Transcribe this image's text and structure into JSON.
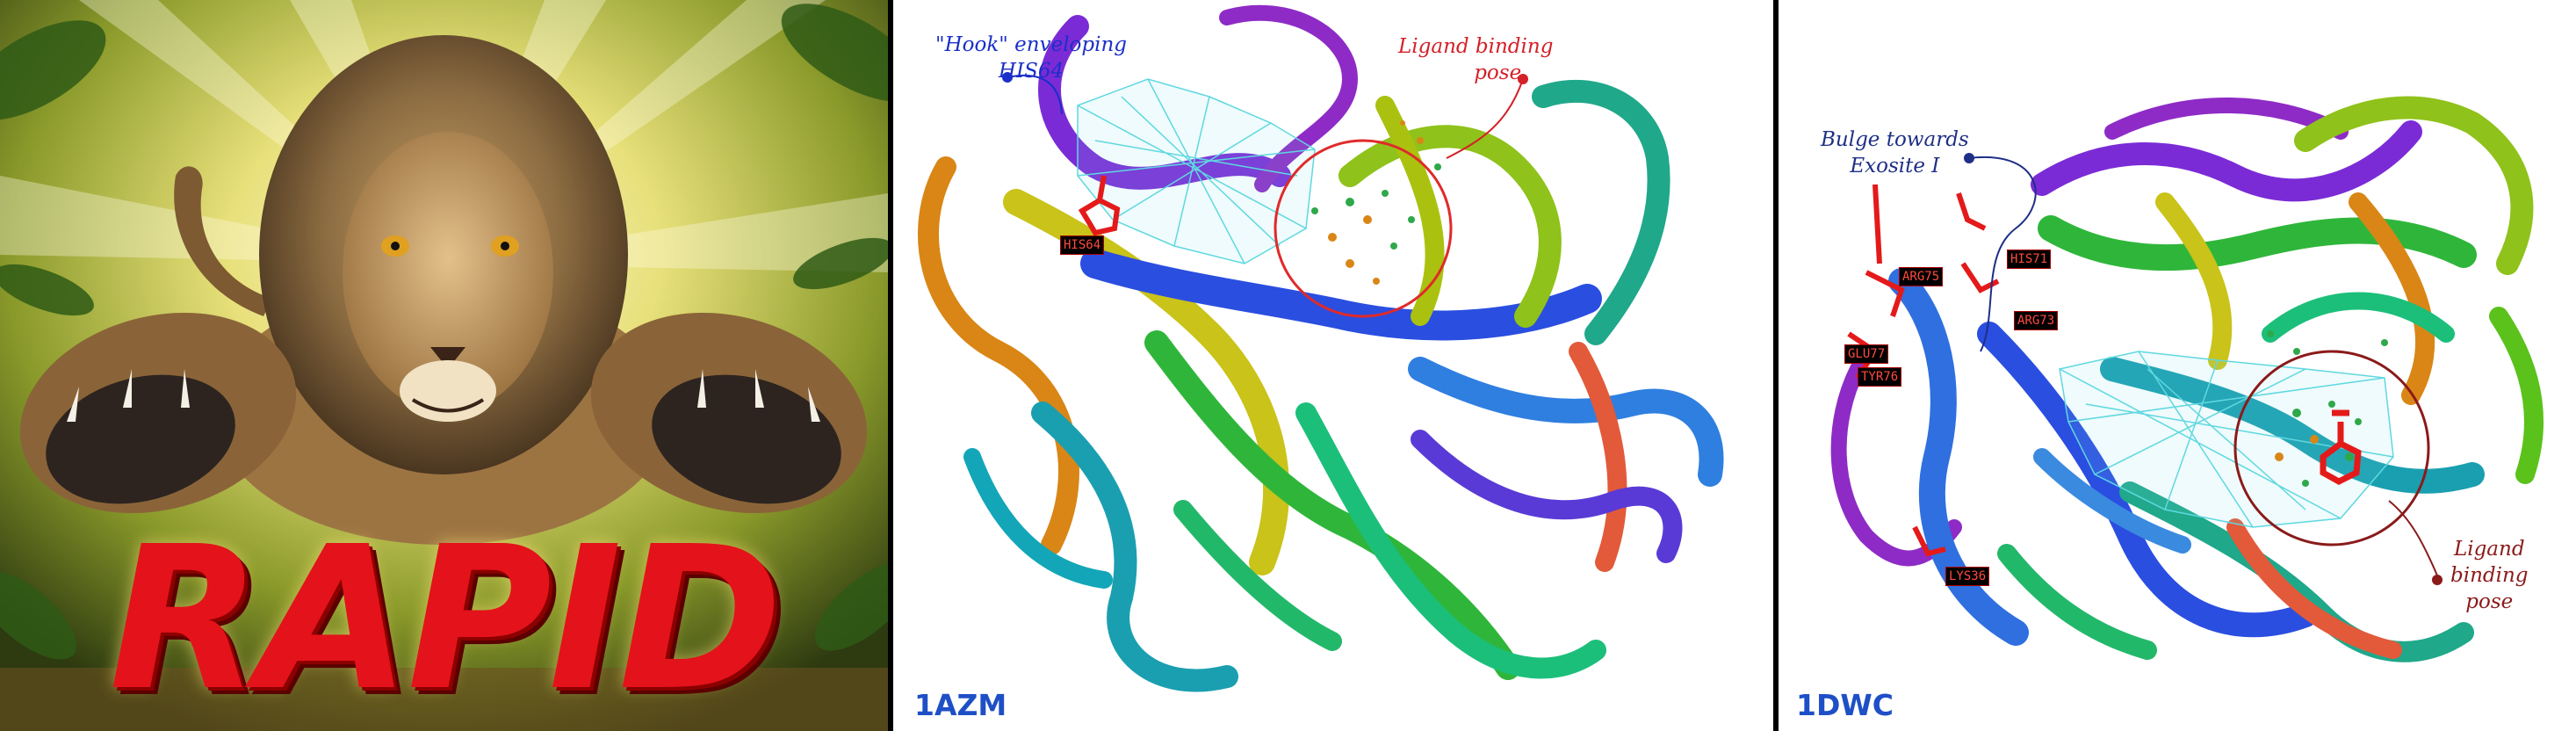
{
  "panels": {
    "lion": {
      "title_text": "RAPID"
    },
    "left_structure": {
      "pdb_id": "1AZM",
      "annotations": {
        "hook_line1": "\"Hook\" enveloping",
        "hook_line2": "HIS64",
        "ligand_line1": "Ligand binding",
        "ligand_line2": "pose"
      },
      "residue_labels": [
        "HIS64"
      ]
    },
    "right_structure": {
      "pdb_id": "1DWC",
      "annotations": {
        "bulge_line1": "Bulge towards",
        "bulge_line2": "Exosite I",
        "ligand_line1": "Ligand",
        "ligand_line2": "binding",
        "ligand_line3": "pose"
      },
      "residue_labels": [
        "ARG75",
        "HIS71",
        "ARG73",
        "GLU77",
        "TYR76",
        "LYS36"
      ]
    }
  },
  "colors": {
    "annotation_blue": "#1a2fc9",
    "annotation_red": "#d42028",
    "annotation_darkred": "#8b1a1a",
    "pdb_label": "#1e4fc7",
    "rapid_red": "#e4121a"
  }
}
